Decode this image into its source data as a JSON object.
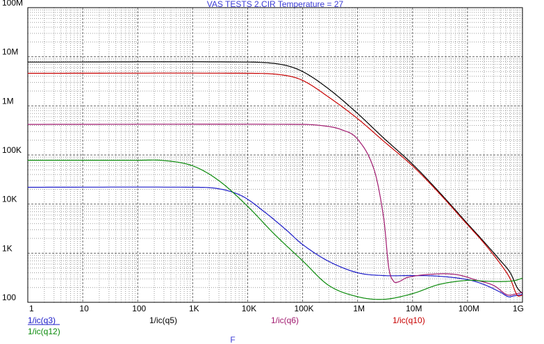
{
  "chart_data": {
    "type": "line",
    "title": "VAS TESTS 2.CIR Temperature = 27",
    "xlabel": "F",
    "ylabel": "",
    "x_scale": "log",
    "y_scale": "log",
    "xlim": [
      1,
      1000000000
    ],
    "ylim": [
      100,
      100000000
    ],
    "grid": true,
    "legend": "bottom",
    "x_ticks": [
      {
        "v": 1,
        "label": "1"
      },
      {
        "v": 10,
        "label": "10"
      },
      {
        "v": 100,
        "label": "100"
      },
      {
        "v": 1000,
        "label": "1K"
      },
      {
        "v": 10000,
        "label": "10K"
      },
      {
        "v": 100000,
        "label": "100K"
      },
      {
        "v": 1000000,
        "label": "1M"
      },
      {
        "v": 10000000,
        "label": "10M"
      },
      {
        "v": 100000000,
        "label": "100M"
      },
      {
        "v": 1000000000,
        "label": "1G"
      }
    ],
    "y_ticks": [
      {
        "v": 100,
        "label": "100"
      },
      {
        "v": 1000,
        "label": "1K"
      },
      {
        "v": 10000,
        "label": "10K"
      },
      {
        "v": 100000,
        "label": "100K"
      },
      {
        "v": 1000000,
        "label": "1M"
      },
      {
        "v": 10000000,
        "label": "10M"
      },
      {
        "v": 100000000,
        "label": "100M"
      }
    ],
    "series": [
      {
        "name": "1/ic(q3)",
        "color": "#1a1ac8",
        "points": [
          [
            1,
            22000
          ],
          [
            1000,
            22000
          ],
          [
            3000,
            20500
          ],
          [
            8000,
            14500
          ],
          [
            20000,
            7000
          ],
          [
            50000,
            3000
          ],
          [
            100000,
            1500
          ],
          [
            300000,
            680
          ],
          [
            1000000,
            400
          ],
          [
            3000000,
            350
          ],
          [
            10000000,
            350
          ],
          [
            30000000,
            340
          ],
          [
            100000000,
            290
          ],
          [
            200000000,
            230
          ],
          [
            400000000,
            160
          ],
          [
            550000000,
            130
          ],
          [
            700000000,
            135
          ],
          [
            1000000000,
            145
          ]
        ]
      },
      {
        "name": "1/ic(q5)",
        "color": "#000000",
        "points": [
          [
            1,
            7800000
          ],
          [
            10000,
            7800000
          ],
          [
            40000,
            7000000
          ],
          [
            100000,
            5000000
          ],
          [
            300000,
            2200000
          ],
          [
            1000000,
            700000
          ],
          [
            3000000,
            220000
          ],
          [
            10000000,
            65000
          ],
          [
            30000000,
            18000
          ],
          [
            100000000,
            4000
          ],
          [
            200000000,
            1700
          ],
          [
            400000000,
            700
          ],
          [
            600000000,
            400
          ],
          [
            800000000,
            200
          ],
          [
            1000000000,
            150
          ]
        ]
      },
      {
        "name": "1/ic(q6)",
        "color": "#a0186e",
        "points": [
          [
            1,
            420000
          ],
          [
            100000,
            420000
          ],
          [
            250000,
            390000
          ],
          [
            500000,
            330000
          ],
          [
            1000000,
            210000
          ],
          [
            2000000,
            50000
          ],
          [
            3000000,
            5000
          ],
          [
            3700000,
            500
          ],
          [
            4500000,
            270
          ],
          [
            5500000,
            260
          ],
          [
            8000000,
            320
          ],
          [
            20000000,
            370
          ],
          [
            60000000,
            370
          ],
          [
            150000000,
            280
          ],
          [
            300000000,
            220
          ],
          [
            500000000,
            145
          ],
          [
            600000000,
            140
          ],
          [
            800000000,
            150
          ],
          [
            1000000000,
            160
          ]
        ]
      },
      {
        "name": "1/ic(q10)",
        "color": "#c80000",
        "points": [
          [
            1,
            4600000
          ],
          [
            10000,
            4600000
          ],
          [
            40000,
            4300000
          ],
          [
            100000,
            3300000
          ],
          [
            300000,
            1500000
          ],
          [
            1000000,
            550000
          ],
          [
            3000000,
            190000
          ],
          [
            10000000,
            60000
          ],
          [
            30000000,
            17000
          ],
          [
            100000000,
            3800
          ],
          [
            200000000,
            1600
          ],
          [
            400000000,
            600
          ],
          [
            600000000,
            300
          ],
          [
            800000000,
            140
          ],
          [
            1000000000,
            140
          ]
        ]
      },
      {
        "name": "1/ic(q12)",
        "color": "#0a8a0a",
        "points": [
          [
            1,
            78000
          ],
          [
            100,
            78000
          ],
          [
            300,
            77000
          ],
          [
            1000,
            60000
          ],
          [
            3000,
            30000
          ],
          [
            10000,
            9000
          ],
          [
            30000,
            2500
          ],
          [
            100000,
            700
          ],
          [
            300000,
            220
          ],
          [
            1000000,
            130
          ],
          [
            3000000,
            115
          ],
          [
            10000000,
            150
          ],
          [
            30000000,
            230
          ],
          [
            100000000,
            280
          ],
          [
            200000000,
            270
          ],
          [
            400000000,
            265
          ],
          [
            700000000,
            275
          ],
          [
            1000000000,
            310
          ]
        ]
      }
    ]
  }
}
